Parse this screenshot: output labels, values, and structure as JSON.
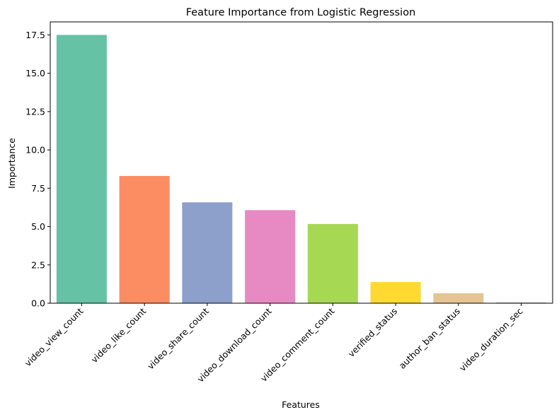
{
  "chart_data": {
    "type": "bar",
    "title": "Feature Importance from Logistic Regression",
    "xlabel": "Features",
    "ylabel": "Importance",
    "categories": [
      "video_view_count",
      "video_like_count",
      "video_share_count",
      "video_download_count",
      "video_comment_count",
      "verified_status",
      "author_ban_status",
      "video_duration_sec"
    ],
    "values": [
      17.5,
      8.3,
      6.58,
      6.07,
      5.17,
      1.38,
      0.65,
      0.05
    ],
    "colors": [
      "#66c2a5",
      "#fc8d62",
      "#8da0cb",
      "#e78ac3",
      "#a6d854",
      "#ffd92f",
      "#e5c494",
      "#b3b3b3"
    ],
    "ylim": [
      0,
      18.35
    ],
    "yticks": [
      "0.0",
      "2.5",
      "5.0",
      "7.5",
      "10.0",
      "12.5",
      "15.0",
      "17.5"
    ],
    "grid": false,
    "legend": "none"
  }
}
